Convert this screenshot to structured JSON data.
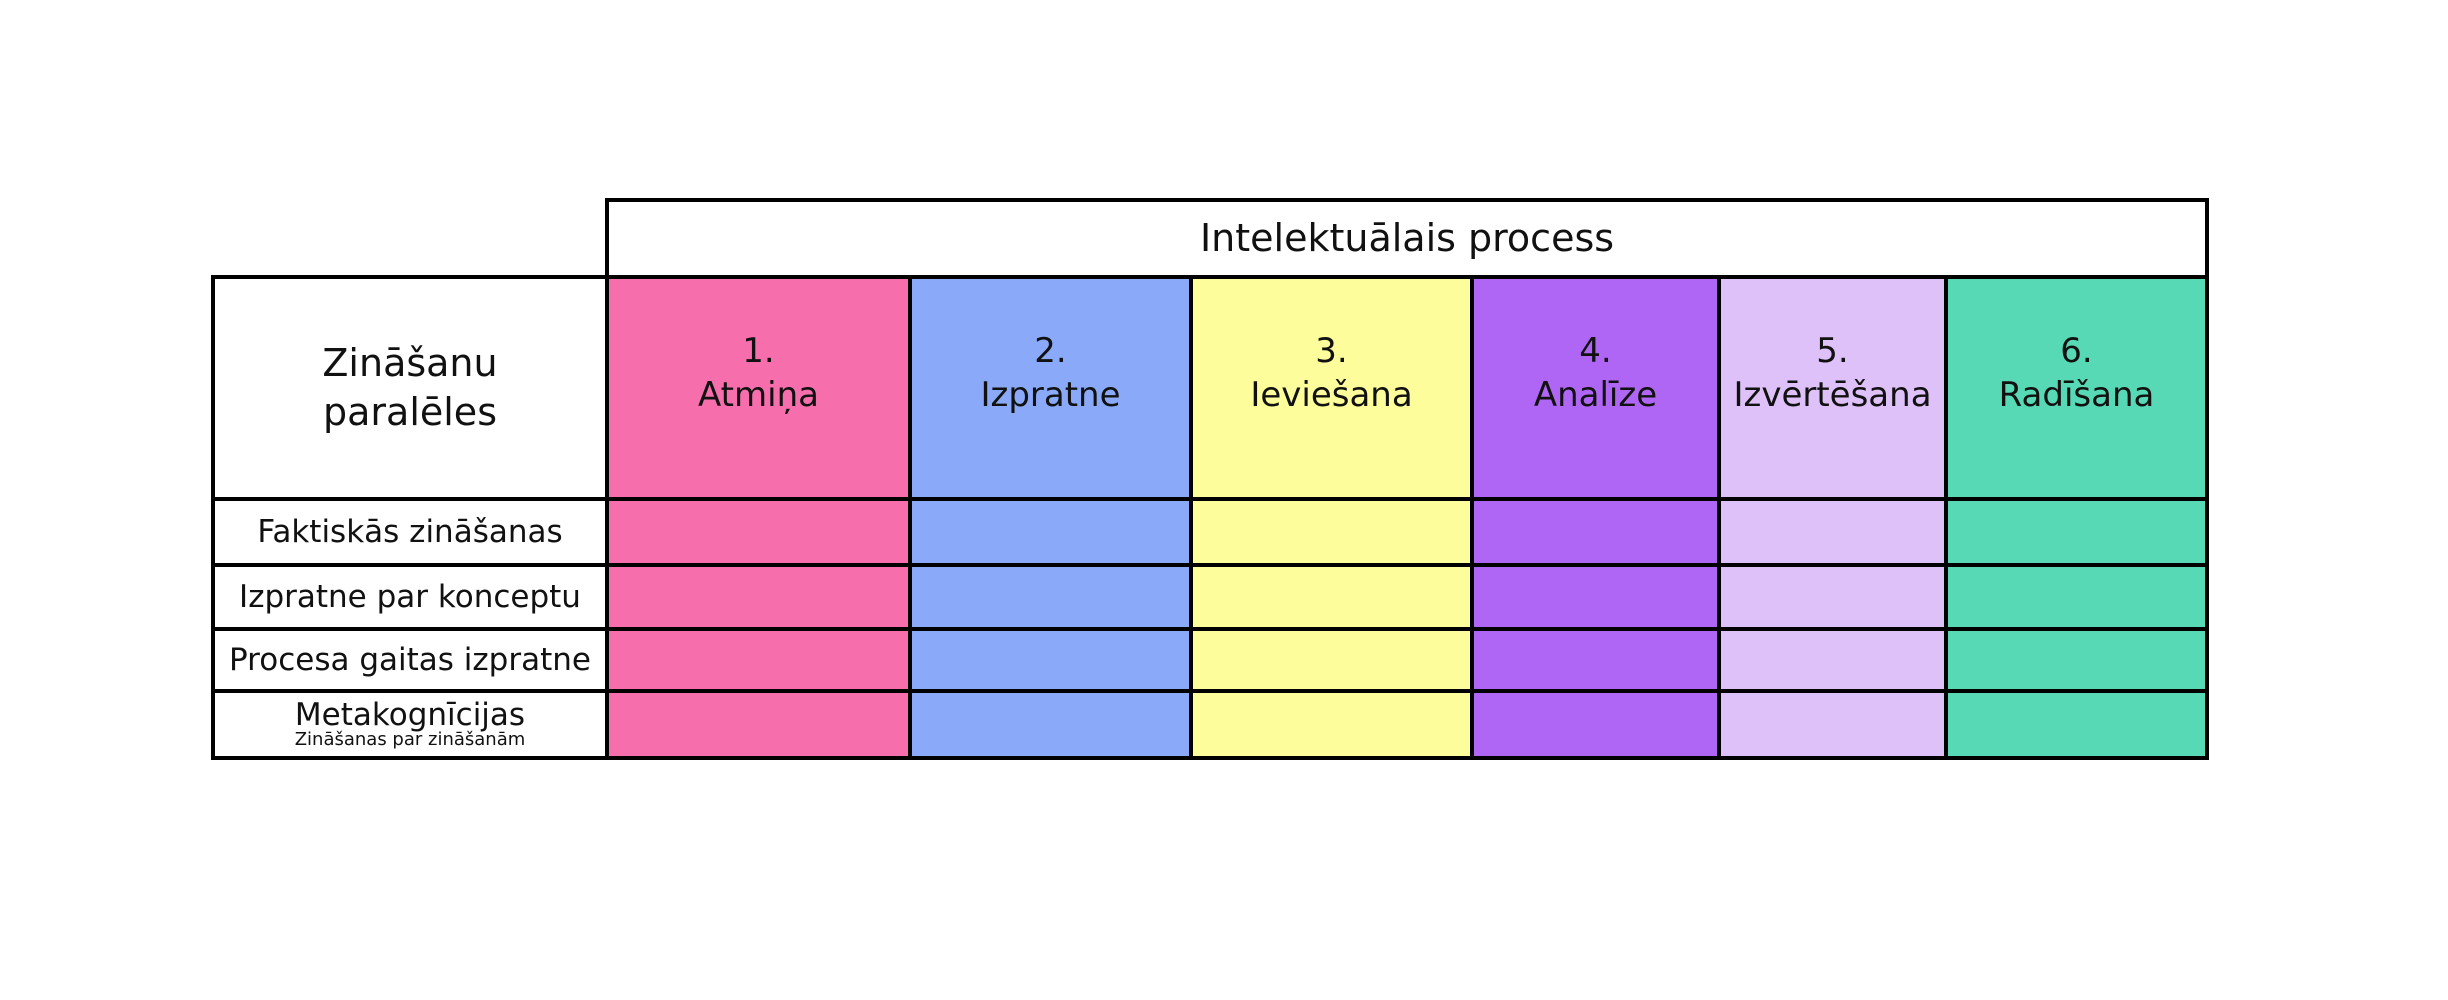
{
  "header": {
    "title": "Intelektuālais process"
  },
  "row_header": "Zināšanu paralēles",
  "columns": [
    {
      "number": "1.",
      "name": "Atmiņa",
      "color": "#f76eac"
    },
    {
      "number": "2.",
      "name": "Izpratne",
      "color": "#8aa9f8"
    },
    {
      "number": "3.",
      "name": "Ieviešana",
      "color": "#fdfd9b"
    },
    {
      "number": "4.",
      "name": "Analīze",
      "color": "#b066f5"
    },
    {
      "number": "5.",
      "name": "Izvērtēšana",
      "color": "#dec1f8"
    },
    {
      "number": "6.",
      "name": "Radīšana",
      "color": "#56d9b4"
    }
  ],
  "rows": [
    {
      "label": "Faktiskās zināšanas"
    },
    {
      "label": "Izpratne par konceptu"
    },
    {
      "label": "Procesa gaitas izpratne"
    },
    {
      "label": "Metakognīcijas",
      "sublabel": "Zināšanas par zināšanām"
    }
  ]
}
